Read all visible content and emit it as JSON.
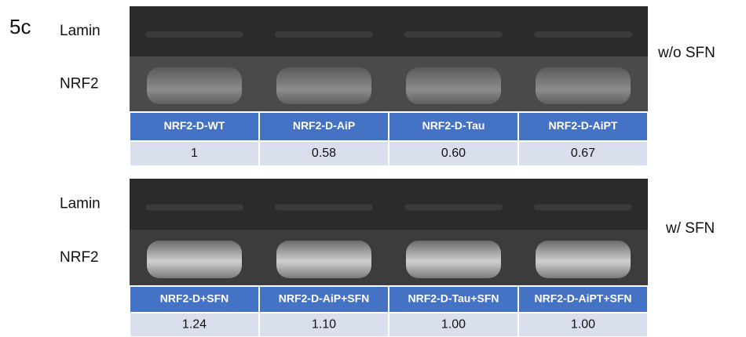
{
  "panel_label": "5c",
  "blocks": [
    {
      "condition": "w/o SFN",
      "rows": [
        "Lamin",
        "NRF2"
      ],
      "header": [
        "NRF2-D-WT",
        "NRF2-D-AiP",
        "NRF2-D-Tau",
        "NRF2-D-AiPT"
      ],
      "values": [
        "1",
        "0.58",
        "0.60",
        "0.67"
      ]
    },
    {
      "condition": "w/ SFN",
      "rows": [
        "Lamin",
        "NRF2"
      ],
      "header": [
        "NRF2-D+SFN",
        "NRF2-D-AiP+SFN",
        "NRF2-D-Tau+SFN",
        "NRF2-D-AiPT+SFN"
      ],
      "values": [
        "1.24",
        "1.10",
        "1.00",
        "1.00"
      ]
    }
  ]
}
